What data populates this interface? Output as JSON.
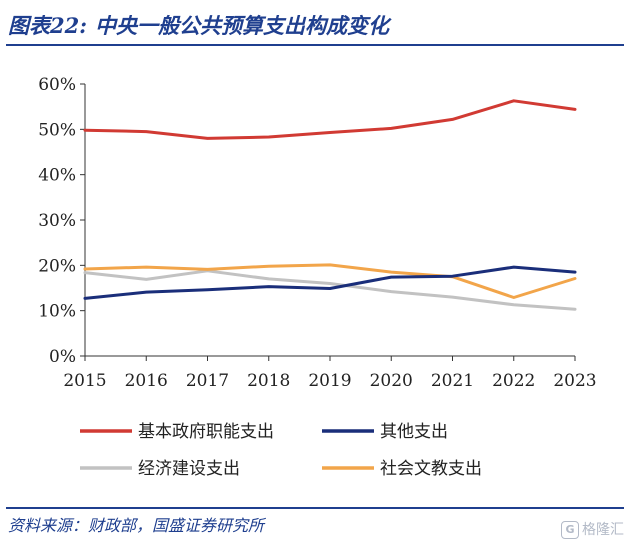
{
  "figure": {
    "label": "图表22:",
    "title": "中央一般公共预算支出构成变化"
  },
  "source_note": "资料来源：财政部，国盛证券研究所",
  "watermark": {
    "logo_glyph": "G",
    "text": "格隆汇"
  },
  "colors": {
    "brand": "#1f3f8f",
    "axis": "#333333"
  },
  "chart_data": {
    "type": "line",
    "x": [
      2015,
      2016,
      2017,
      2018,
      2019,
      2020,
      2021,
      2022,
      2023
    ],
    "x_tick_labels": [
      "2015",
      "2016",
      "2017",
      "2018",
      "2019",
      "2020",
      "2021",
      "2022",
      "2023"
    ],
    "ylim": [
      0,
      60
    ],
    "y_ticks": [
      0,
      10,
      20,
      30,
      40,
      50,
      60
    ],
    "y_tick_labels": [
      "0%",
      "10%",
      "20%",
      "30%",
      "40%",
      "50%",
      "60%"
    ],
    "grid": false,
    "legend_position": "bottom",
    "title": "",
    "xlabel": "",
    "ylabel": "",
    "series": [
      {
        "name": "基本政府职能支出",
        "color": "#d13a33",
        "values": [
          49.8,
          49.5,
          48.0,
          48.3,
          49.3,
          50.2,
          52.2,
          56.3,
          54.4
        ]
      },
      {
        "name": "其他支出",
        "color": "#1a2e7a",
        "values": [
          12.7,
          14.1,
          14.6,
          15.3,
          14.9,
          17.4,
          17.6,
          19.6,
          18.5
        ]
      },
      {
        "name": "经济建设支出",
        "color": "#c2c2c2",
        "values": [
          18.4,
          16.9,
          18.8,
          17.0,
          16.0,
          14.2,
          13.0,
          11.3,
          10.3
        ]
      },
      {
        "name": "社会文教支出",
        "color": "#f2a54a",
        "values": [
          19.2,
          19.6,
          19.1,
          19.8,
          20.1,
          18.5,
          17.5,
          12.9,
          17.1
        ]
      }
    ]
  }
}
